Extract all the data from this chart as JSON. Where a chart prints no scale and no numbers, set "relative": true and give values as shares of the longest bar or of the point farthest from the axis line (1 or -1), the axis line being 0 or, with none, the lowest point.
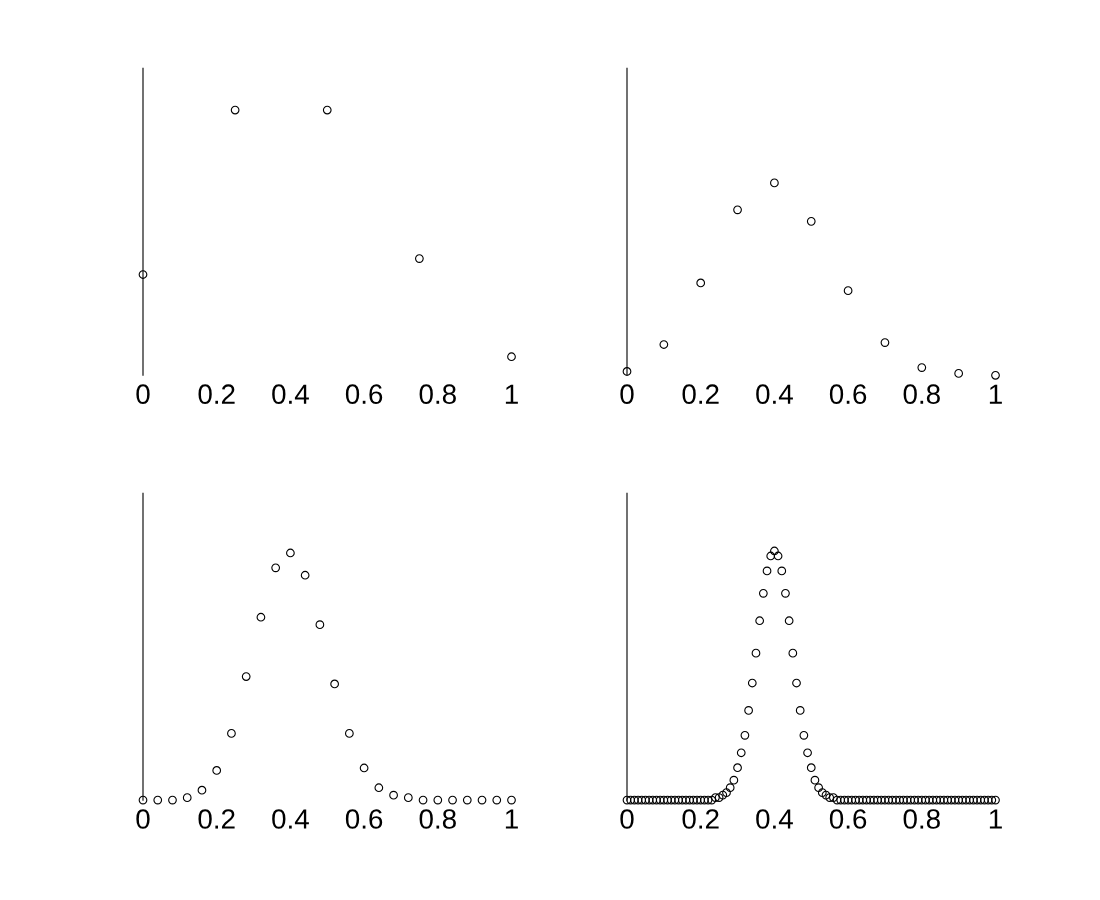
{
  "chart_data": [
    {
      "type": "scatter",
      "relative": true,
      "marker": "circle",
      "tick_labels": "x",
      "grid": false,
      "xlim": [
        0,
        1
      ],
      "xticks": [
        0,
        0.2,
        0.4,
        0.6,
        0.8,
        1
      ],
      "series": [
        {
          "color": "#000000",
          "x": [
            0,
            0.25,
            0.5,
            0.75,
            1
          ],
          "values": [
            0.38,
            1,
            1,
            0.44,
            0.07
          ]
        }
      ]
    },
    {
      "type": "scatter",
      "relative": true,
      "marker": "circle",
      "tick_labels": "x",
      "grid": false,
      "xlim": [
        0,
        1
      ],
      "xticks": [
        0,
        0.2,
        0.4,
        0.6,
        0.8,
        1
      ],
      "series": [
        {
          "color": "#000000",
          "x": [
            0,
            0.1,
            0.2,
            0.3,
            0.4,
            0.5,
            0.6,
            0.7,
            0.8,
            0.9,
            1
          ],
          "values": [
            0.02,
            0.16,
            0.48,
            0.86,
            1,
            0.8,
            0.44,
            0.17,
            0.04,
            0.01,
            0
          ]
        }
      ]
    },
    {
      "type": "scatter",
      "relative": true,
      "marker": "circle",
      "tick_labels": "x",
      "grid": false,
      "xlim": [
        0,
        1
      ],
      "xticks": [
        0,
        0.2,
        0.4,
        0.6,
        0.8,
        1
      ],
      "series": [
        {
          "color": "#000000",
          "x": [
            0,
            0.04,
            0.08,
            0.12,
            0.16,
            0.2,
            0.24,
            0.28,
            0.32,
            0.36,
            0.4,
            0.44,
            0.48,
            0.52,
            0.56,
            0.6,
            0.64,
            0.68,
            0.72,
            0.76,
            0.8,
            0.84,
            0.88,
            0.92,
            0.96,
            1
          ],
          "values": [
            0,
            0,
            0,
            0.01,
            0.04,
            0.12,
            0.27,
            0.5,
            0.74,
            0.94,
            1,
            0.91,
            0.71,
            0.47,
            0.27,
            0.13,
            0.05,
            0.02,
            0.01,
            0,
            0,
            0,
            0,
            0,
            0,
            0
          ]
        }
      ]
    },
    {
      "type": "scatter",
      "relative": true,
      "marker": "circle",
      "tick_labels": "x",
      "grid": false,
      "xlim": [
        0,
        1
      ],
      "xticks": [
        0,
        0.2,
        0.4,
        0.6,
        0.8,
        1
      ],
      "series": [
        {
          "color": "#000000",
          "x": [
            0,
            0.01,
            0.02,
            0.03,
            0.04,
            0.05,
            0.06,
            0.07,
            0.08,
            0.09,
            0.1,
            0.11,
            0.12,
            0.13,
            0.14,
            0.15,
            0.16,
            0.17,
            0.18,
            0.19,
            0.2,
            0.21,
            0.22,
            0.23,
            0.24,
            0.25,
            0.26,
            0.27,
            0.28,
            0.29,
            0.3,
            0.31,
            0.32,
            0.33,
            0.34,
            0.35,
            0.36,
            0.37,
            0.38,
            0.39,
            0.4,
            0.41,
            0.42,
            0.43,
            0.44,
            0.45,
            0.46,
            0.47,
            0.48,
            0.49,
            0.5,
            0.51,
            0.52,
            0.53,
            0.54,
            0.55,
            0.56,
            0.57,
            0.58,
            0.59,
            0.6,
            0.61,
            0.62,
            0.63,
            0.64,
            0.65,
            0.66,
            0.67,
            0.68,
            0.69,
            0.7,
            0.71,
            0.72,
            0.73,
            0.74,
            0.75,
            0.76,
            0.77,
            0.78,
            0.79,
            0.8,
            0.81,
            0.82,
            0.83,
            0.84,
            0.85,
            0.86,
            0.87,
            0.88,
            0.89,
            0.9,
            0.91,
            0.92,
            0.93,
            0.94,
            0.95,
            0.96,
            0.97,
            0.98,
            0.99,
            1
          ],
          "values": [
            0,
            0,
            0,
            0,
            0,
            0,
            0,
            0,
            0,
            0,
            0,
            0,
            0,
            0,
            0,
            0,
            0,
            0,
            0,
            0,
            0,
            0,
            0,
            0,
            0.01,
            0.01,
            0.02,
            0.03,
            0.05,
            0.08,
            0.13,
            0.19,
            0.26,
            0.36,
            0.47,
            0.59,
            0.72,
            0.83,
            0.92,
            0.98,
            1,
            0.98,
            0.92,
            0.83,
            0.72,
            0.59,
            0.47,
            0.36,
            0.26,
            0.19,
            0.13,
            0.08,
            0.05,
            0.03,
            0.02,
            0.01,
            0.01,
            0,
            0,
            0,
            0,
            0,
            0,
            0,
            0,
            0,
            0,
            0,
            0,
            0,
            0,
            0,
            0,
            0,
            0,
            0,
            0,
            0,
            0,
            0,
            0,
            0,
            0,
            0,
            0,
            0,
            0,
            0,
            0,
            0,
            0,
            0,
            0,
            0,
            0,
            0,
            0,
            0,
            0,
            0,
            0
          ]
        }
      ]
    }
  ]
}
